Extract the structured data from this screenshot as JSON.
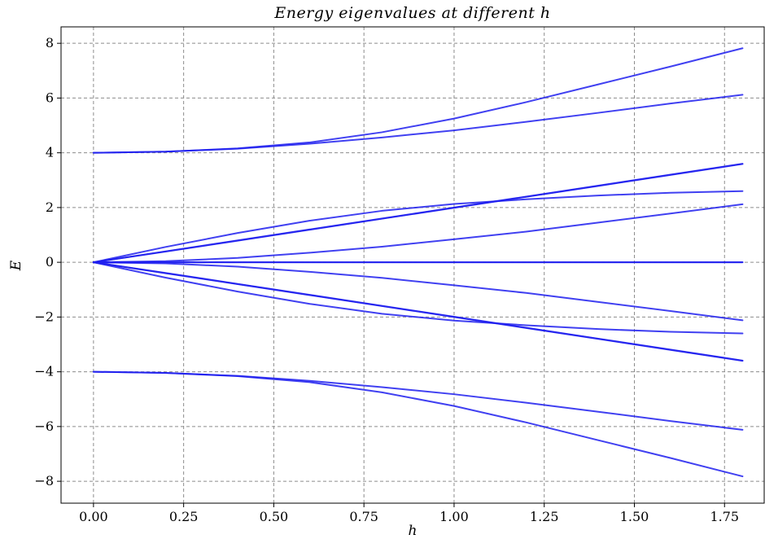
{
  "chart_data": {
    "type": "line",
    "title": "Energy eigenvalues at different h",
    "xlabel": "h",
    "ylabel": "E",
    "xlim": [
      -0.09,
      1.86
    ],
    "ylim": [
      -8.8,
      8.6
    ],
    "xticks": [
      0.0,
      0.25,
      0.5,
      0.75,
      1.0,
      1.25,
      1.5,
      1.75
    ],
    "xtick_labels": [
      "0.00",
      "0.25",
      "0.50",
      "0.75",
      "1.00",
      "1.25",
      "1.50",
      "1.75"
    ],
    "yticks": [
      -8,
      -6,
      -4,
      -2,
      0,
      2,
      4,
      6,
      8
    ],
    "ytick_labels": [
      "−8",
      "−6",
      "−4",
      "−2",
      "0",
      "2",
      "4",
      "6",
      "8"
    ],
    "grid": true,
    "line_color": "#1f1fee",
    "x": [
      0.0,
      0.2,
      0.4,
      0.6,
      0.8,
      1.0,
      1.2,
      1.4,
      1.6,
      1.8
    ],
    "series": [
      {
        "values": [
          4.0,
          4.04,
          4.16,
          4.38,
          4.75,
          5.25,
          5.85,
          6.5,
          7.15,
          7.82
        ]
      },
      {
        "values": [
          4.0,
          4.04,
          4.15,
          4.33,
          4.56,
          4.82,
          5.13,
          5.46,
          5.8,
          6.12
        ]
      },
      {
        "values": [
          0.0,
          0.4,
          0.8,
          1.2,
          1.6,
          2.0,
          2.4,
          2.8,
          3.2,
          3.6
        ]
      },
      {
        "values": [
          0.0,
          0.39,
          0.79,
          1.19,
          1.59,
          1.99,
          2.39,
          2.79,
          3.19,
          3.59
        ]
      },
      {
        "values": [
          0.0,
          0.56,
          1.07,
          1.52,
          1.88,
          2.13,
          2.3,
          2.44,
          2.54,
          2.6
        ]
      },
      {
        "values": [
          0.0,
          0.04,
          0.16,
          0.35,
          0.57,
          0.84,
          1.12,
          1.45,
          1.78,
          2.12
        ]
      },
      {
        "values": [
          0.0,
          0.0,
          0.0,
          0.0,
          0.0,
          0.0,
          0.0,
          0.0,
          0.0,
          0.0
        ]
      },
      {
        "values": [
          0.0,
          0.0,
          0.0,
          0.0,
          0.0,
          0.0,
          0.0,
          0.0,
          0.0,
          0.0
        ]
      },
      {
        "values": [
          0.0,
          -0.04,
          -0.16,
          -0.35,
          -0.57,
          -0.84,
          -1.12,
          -1.45,
          -1.78,
          -2.12
        ]
      },
      {
        "values": [
          0.0,
          -0.56,
          -1.07,
          -1.52,
          -1.88,
          -2.13,
          -2.3,
          -2.44,
          -2.54,
          -2.6
        ]
      },
      {
        "values": [
          0.0,
          -0.4,
          -0.8,
          -1.2,
          -1.6,
          -2.0,
          -2.4,
          -2.8,
          -3.2,
          -3.6
        ]
      },
      {
        "values": [
          0.0,
          -0.39,
          -0.79,
          -1.19,
          -1.59,
          -1.99,
          -2.39,
          -2.79,
          -3.19,
          -3.59
        ]
      },
      {
        "values": [
          -4.0,
          -4.04,
          -4.15,
          -4.33,
          -4.56,
          -4.82,
          -5.13,
          -5.46,
          -5.8,
          -6.12
        ]
      },
      {
        "values": [
          -4.0,
          -4.04,
          -4.16,
          -4.38,
          -4.75,
          -5.25,
          -5.85,
          -6.5,
          -7.15,
          -7.82
        ]
      }
    ]
  }
}
